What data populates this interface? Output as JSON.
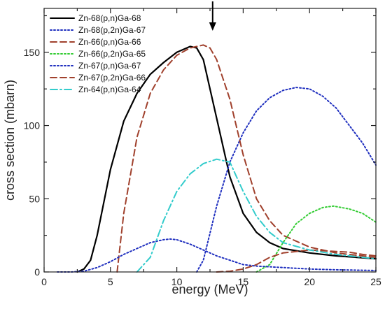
{
  "chart_data": {
    "type": "line",
    "title": "",
    "xlabel": "energy (MeV)",
    "ylabel": "cross section (mbarn)",
    "xlim": [
      0,
      25
    ],
    "ylim": [
      0,
      180
    ],
    "xticks": [
      0,
      5,
      10,
      15,
      20,
      25
    ],
    "yticks": [
      0,
      50,
      100,
      150
    ],
    "grid": false,
    "legend_position": "top-left",
    "annotations": [
      {
        "type": "arrow",
        "x": 12.7,
        "direction": "down",
        "at": "top"
      }
    ],
    "series": [
      {
        "name": "Zn-68(p,n)Ga-68",
        "color": "#000000",
        "style": "solid",
        "x": [
          2.5,
          3,
          3.5,
          4,
          5,
          6,
          7,
          8,
          9,
          10,
          11,
          11.5,
          12,
          13,
          14,
          15,
          16,
          17,
          18,
          20,
          22,
          25
        ],
        "y": [
          0,
          2,
          8,
          25,
          70,
          103,
          122,
          135,
          143,
          150,
          154,
          153,
          145,
          105,
          65,
          40,
          27,
          20,
          16,
          13,
          11,
          9
        ]
      },
      {
        "name": "Zn-68(p,2n)Ga-67",
        "color": "#1f2fbf",
        "style": "dotted",
        "x": [
          11.5,
          12,
          13,
          14,
          15,
          16,
          17,
          18,
          19,
          20,
          21,
          22,
          23,
          24,
          25
        ],
        "y": [
          0,
          8,
          45,
          75,
          95,
          110,
          119,
          124,
          126,
          125,
          120,
          112,
          100,
          88,
          73
        ]
      },
      {
        "name": "Zn-66(p,n)Ga-66",
        "color": "#a0402c",
        "style": "dashed",
        "x": [
          5.5,
          6,
          7,
          8,
          9,
          10,
          11,
          12,
          12.5,
          13,
          14,
          15,
          16,
          17,
          18,
          20,
          22,
          25
        ],
        "y": [
          0,
          40,
          92,
          122,
          138,
          148,
          153,
          155,
          153,
          145,
          118,
          80,
          50,
          35,
          25,
          17,
          13,
          10
        ]
      },
      {
        "name": "Zn-66(p,2n)Ga-65",
        "color": "#33cc33",
        "style": "dotted",
        "x": [
          16,
          17,
          18,
          19,
          20,
          21,
          21.8,
          23,
          24,
          25
        ],
        "y": [
          0,
          5,
          20,
          33,
          40,
          44,
          45,
          43,
          40,
          34
        ]
      },
      {
        "name": "Zn-67(p,n)Ga-67",
        "color": "#1f2fbf",
        "style": "dotted",
        "x": [
          1,
          2,
          3,
          4,
          5,
          6,
          7,
          8,
          9,
          9.5,
          10,
          11,
          12,
          13,
          14,
          15,
          16,
          18,
          20,
          22,
          25
        ],
        "y": [
          0,
          0,
          0.5,
          3,
          7,
          12,
          16,
          20,
          22,
          22.5,
          22,
          19,
          15,
          11,
          8,
          5,
          4,
          3,
          2,
          1.5,
          1
        ]
      },
      {
        "name": "Zn-67(p,2n)Ga-66",
        "color": "#a0402c",
        "style": "dashed",
        "x": [
          13,
          14,
          15,
          16,
          17,
          18,
          19,
          20,
          21,
          22,
          23,
          24,
          25
        ],
        "y": [
          0,
          0.5,
          2,
          5,
          10,
          13,
          14,
          15,
          14.5,
          14,
          13.5,
          12,
          11
        ]
      },
      {
        "name": "Zn-64(p,n)Ga-64",
        "color": "#33cccc",
        "style": "dashdot",
        "x": [
          7,
          8,
          9,
          10,
          11,
          12,
          13,
          14,
          15,
          16,
          17,
          18,
          20,
          22,
          25
        ],
        "y": [
          0,
          10,
          35,
          55,
          67,
          74,
          77,
          75,
          55,
          38,
          27,
          20,
          15,
          12,
          9
        ]
      }
    ]
  }
}
